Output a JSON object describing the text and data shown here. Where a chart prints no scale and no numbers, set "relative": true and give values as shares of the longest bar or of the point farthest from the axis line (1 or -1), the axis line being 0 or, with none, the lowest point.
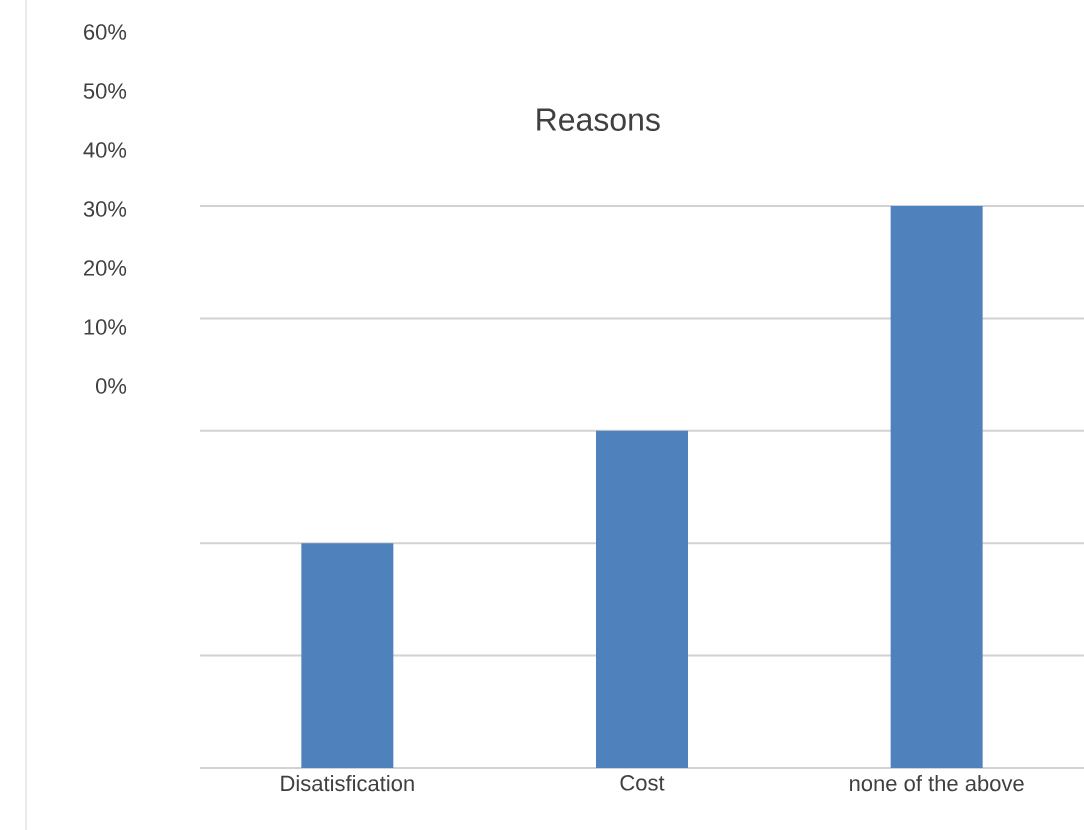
{
  "chart_data": {
    "type": "bar",
    "title": "Reasons",
    "categories": [
      "Disatisfication",
      "Cost",
      "none of the above"
    ],
    "values": [
      0.4,
      0.6,
      1
    ],
    "color": "#4f81bd",
    "relative": true,
    "grid": "y",
    "annotations": [
      "60%",
      "50%",
      "40%",
      "30%",
      "20%",
      "10%",
      "0%"
    ]
  }
}
